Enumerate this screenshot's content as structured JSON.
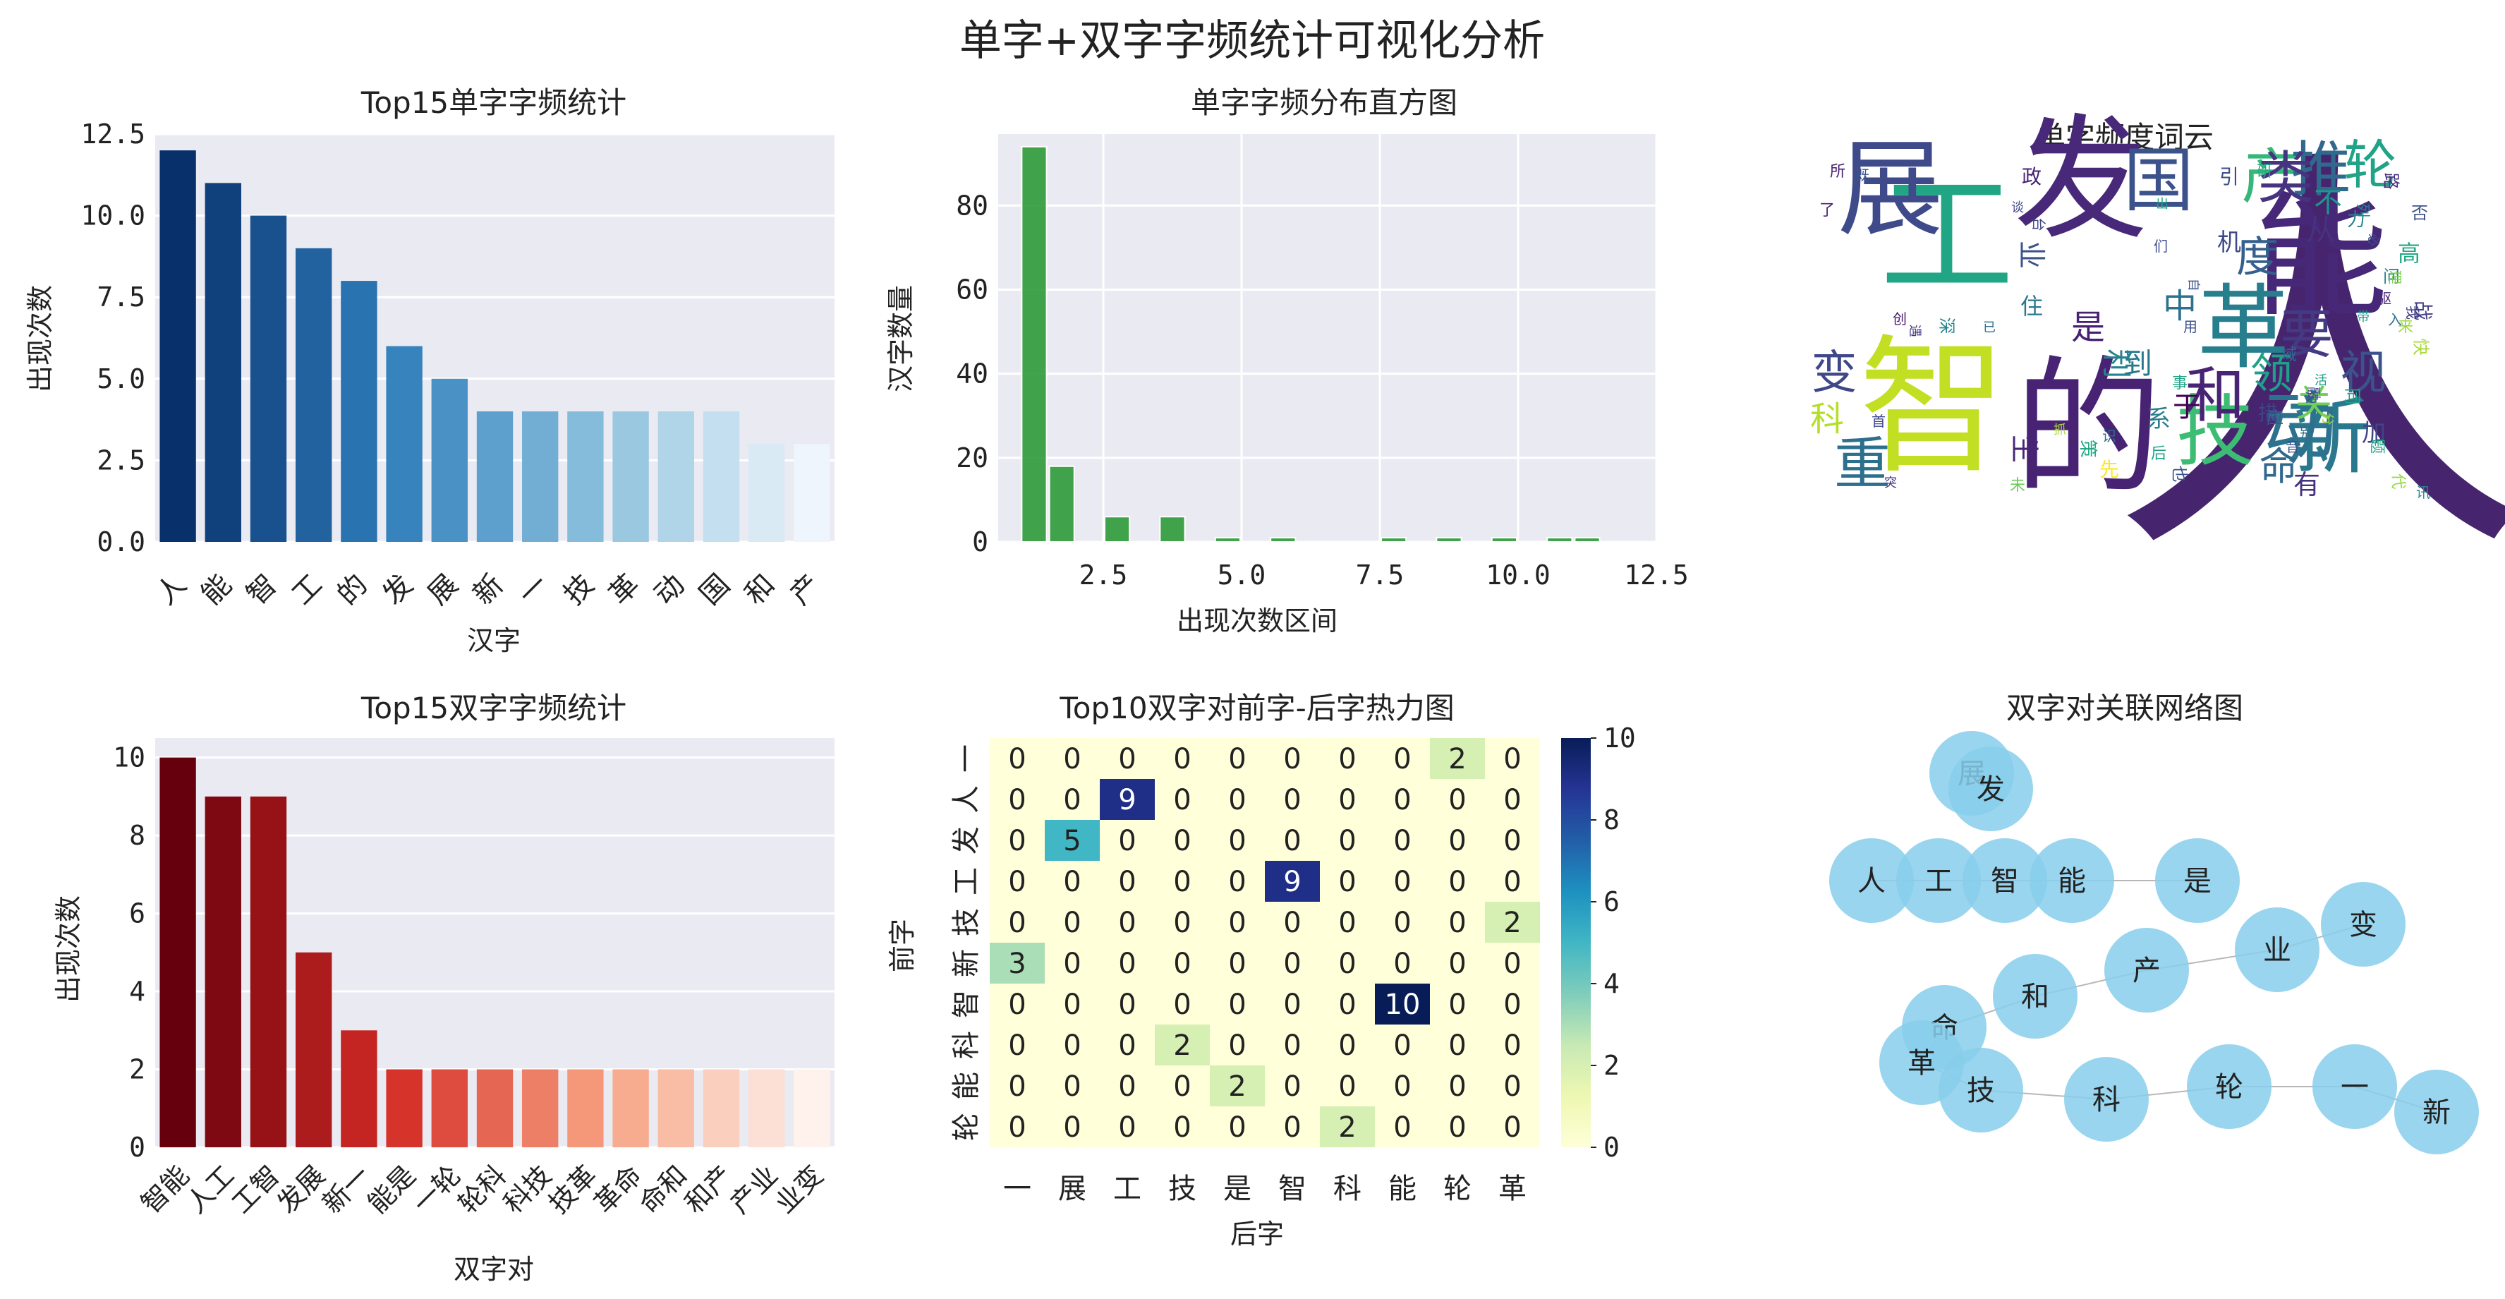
{
  "figure_title": "单字+双字字频统计可视化分析",
  "chart_data": [
    {
      "type": "bar",
      "title": "Top15单字字频统计",
      "xlabel": "汉字",
      "ylabel": "出现次数",
      "categories": [
        "人",
        "能",
        "智",
        "工",
        "的",
        "发",
        "展",
        "新",
        "一",
        "技",
        "革",
        "动",
        "国",
        "和",
        "产"
      ],
      "values": [
        12,
        11,
        10,
        9,
        8,
        6,
        5,
        4,
        4,
        4,
        4,
        4,
        4,
        3,
        3
      ],
      "ylim": [
        0,
        12.5
      ],
      "yticks": [
        "0.0",
        "2.5",
        "5.0",
        "7.5",
        "10.0",
        "12.5"
      ],
      "palette": "Blues_r",
      "grid": true
    },
    {
      "type": "bar",
      "title": "单字字频分布直方图",
      "xlabel": "出现次数区间",
      "ylabel": "汉字数量",
      "bins": [
        {
          "from": 1.0,
          "to": 1.5,
          "count": 94
        },
        {
          "from": 1.5,
          "to": 2.0,
          "count": 18
        },
        {
          "from": 2.5,
          "to": 3.0,
          "count": 6
        },
        {
          "from": 3.5,
          "to": 4.0,
          "count": 6
        },
        {
          "from": 4.5,
          "to": 5.0,
          "count": 1
        },
        {
          "from": 5.5,
          "to": 6.0,
          "count": 1
        },
        {
          "from": 7.5,
          "to": 8.0,
          "count": 1
        },
        {
          "from": 8.5,
          "to": 9.0,
          "count": 1
        },
        {
          "from": 9.5,
          "to": 10.0,
          "count": 1
        },
        {
          "from": 10.5,
          "to": 11.0,
          "count": 1
        },
        {
          "from": 11.0,
          "to": 11.5,
          "count": 1
        }
      ],
      "xlim": [
        0.6,
        12.5
      ],
      "ylim": [
        0,
        97
      ],
      "xticks": [
        "2.5",
        "5.0",
        "7.5",
        "10.0",
        "12.5"
      ],
      "yticks": [
        "0",
        "20",
        "40",
        "60",
        "80"
      ],
      "bar_color": "#2e9a37",
      "grid": true
    },
    {
      "type": "wordcloud",
      "title": "单字频度词云",
      "words": [
        {
          "text": "人",
          "color": "#46256e"
        },
        {
          "text": "能",
          "color": "#472878"
        },
        {
          "text": "智",
          "color": "#c2df23"
        },
        {
          "text": "工",
          "color": "#21a685"
        },
        {
          "text": "的",
          "color": "#482374"
        },
        {
          "text": "发",
          "color": "#482878"
        },
        {
          "text": "展",
          "color": "#3e4a89"
        },
        {
          "text": "新",
          "color": "#2a788e"
        },
        {
          "text": "技",
          "color": "#3dbc74"
        },
        {
          "text": "革",
          "color": "#277f8e"
        },
        {
          "text": "动",
          "color": "#2c718e"
        },
        {
          "text": "国",
          "color": "#3b528b"
        },
        {
          "text": "和",
          "color": "#482475"
        },
        {
          "text": "产",
          "color": "#35b779"
        },
        {
          "text": "推",
          "color": "#31688e"
        },
        {
          "text": "类",
          "color": "#463480"
        },
        {
          "text": "轮",
          "color": "#20a386"
        },
        {
          "text": "要",
          "color": "#443a83"
        },
        {
          "text": "变",
          "color": "#3f4788"
        },
        {
          "text": "重",
          "color": "#2d708e"
        },
        {
          "text": "视",
          "color": "#3b528b"
        },
        {
          "text": "度",
          "color": "#355f8d"
        },
        {
          "text": "领",
          "color": "#1fa088"
        },
        {
          "text": "命",
          "color": "#31688e"
        },
        {
          "text": "中",
          "color": "#2c728e"
        },
        {
          "text": "关",
          "color": "#6ece58"
        },
        {
          "text": "是",
          "color": "#482173"
        },
        {
          "text": "到",
          "color": "#2a788e"
        },
        {
          "text": "从",
          "color": "#46327e"
        },
        {
          "text": "科",
          "color": "#b5de2b"
        },
        {
          "text": "有",
          "color": "#46317e"
        },
        {
          "text": "利",
          "color": "#26828e"
        },
        {
          "text": "于",
          "color": "#440154"
        },
        {
          "text": "不",
          "color": "#1f958b"
        },
        {
          "text": "机",
          "color": "#3e4989"
        },
        {
          "text": "生",
          "color": "#482677"
        },
        {
          "text": "加",
          "color": "#404688"
        },
        {
          "text": "系",
          "color": "#287c8e"
        },
        {
          "text": "高",
          "color": "#22a884"
        },
        {
          "text": "业",
          "color": "#3b528b"
        },
        {
          "text": "住",
          "color": "#2a788e"
        },
        {
          "text": "战",
          "color": "#433d84"
        },
        {
          "text": "政",
          "color": "#482071"
        },
        {
          "text": "力",
          "color": "#25858e"
        },
        {
          "text": "引",
          "color": "#3e4c8a"
        },
        {
          "text": "措",
          "color": "#404588"
        },
        {
          "text": "应",
          "color": "#365d8d"
        },
        {
          "text": "快",
          "color": "#a8db34"
        },
        {
          "text": "同",
          "color": "#1fa187"
        },
        {
          "text": "也",
          "color": "#3b528b"
        },
        {
          "text": "先",
          "color": "#fde725"
        },
        {
          "text": "所",
          "color": "#482071"
        },
        {
          "text": "了",
          "color": "#482374"
        },
        {
          "text": "既",
          "color": "#3b528b"
        },
        {
          "text": "研",
          "color": "#25ab82"
        },
        {
          "text": "否",
          "color": "#3b528b"
        },
        {
          "text": "路",
          "color": "#472f7d"
        },
        {
          "text": "问",
          "color": "#26828e"
        },
        {
          "text": "代",
          "color": "#95d840"
        },
        {
          "text": "题",
          "color": "#20a486"
        },
        {
          "text": "音",
          "color": "#3b528b"
        },
        {
          "text": "事",
          "color": "#20a386"
        },
        {
          "text": "后",
          "color": "#1fa088"
        },
        {
          "text": "策",
          "color": "#22a785"
        },
        {
          "text": "创",
          "color": "#48186a"
        },
        {
          "text": "深",
          "color": "#25848e"
        },
        {
          "text": "用",
          "color": "#3b528b"
        },
        {
          "text": "域",
          "color": "#31688e"
        },
        {
          "text": "列",
          "color": "#26828e"
        },
        {
          "text": "们",
          "color": "#3e4c8a"
        },
        {
          "text": "识",
          "color": "#2d708e"
        },
        {
          "text": "融",
          "color": "#404688"
        },
        {
          "text": "别",
          "color": "#2e6f8e"
        },
        {
          "text": "台",
          "color": "#3f4788"
        },
        {
          "text": "讯",
          "color": "#23898e"
        },
        {
          "text": "未",
          "color": "#6ccd5a"
        },
        {
          "text": "抓",
          "color": "#a5db36"
        },
        {
          "text": "遇",
          "color": "#453781"
        },
        {
          "text": "已",
          "color": "#2e6e8e"
        },
        {
          "text": "首",
          "color": "#3f4889"
        },
        {
          "text": "驱",
          "color": "#482878"
        },
        {
          "text": "理",
          "color": "#7ad151"
        },
        {
          "text": "活",
          "color": "#1f9e89"
        },
        {
          "text": "分",
          "color": "#a0da39"
        },
        {
          "text": "来",
          "color": "#9bd93c"
        },
        {
          "text": "入",
          "color": "#2c728e"
        },
        {
          "text": "我",
          "color": "#424086"
        },
        {
          "text": "带",
          "color": "#1f968b"
        },
        {
          "text": "必",
          "color": "#3d4e8a"
        },
        {
          "text": "论",
          "color": "#38598c"
        },
        {
          "text": "出",
          "color": "#22a785"
        },
        {
          "text": "自",
          "color": "#3b528b"
        },
        {
          "text": "突",
          "color": "#46327e"
        },
        {
          "text": "谈",
          "color": "#3f4889"
        }
      ]
    },
    {
      "type": "bar",
      "title": "Top15双字字频统计",
      "xlabel": "双字对",
      "ylabel": "出现次数",
      "categories": [
        "智能",
        "人工",
        "工智",
        "发展",
        "新一",
        "能是",
        "一轮",
        "轮科",
        "科技",
        "技革",
        "革命",
        "命和",
        "和产",
        "产业",
        "业变"
      ],
      "values": [
        10,
        9,
        9,
        5,
        3,
        2,
        2,
        2,
        2,
        2,
        2,
        2,
        2,
        2,
        2
      ],
      "ylim": [
        0,
        10.5
      ],
      "yticks": [
        "0",
        "2",
        "4",
        "6",
        "8",
        "10"
      ],
      "palette": "Reds_r",
      "grid": true
    },
    {
      "type": "heatmap",
      "title": "Top10双字对前字-后字热力图",
      "xlabel": "后字",
      "ylabel": "前字",
      "x": [
        "一",
        "展",
        "工",
        "技",
        "是",
        "智",
        "科",
        "能",
        "轮",
        "革"
      ],
      "y": [
        "一",
        "人",
        "发",
        "工",
        "技",
        "新",
        "智",
        "科",
        "能",
        "轮"
      ],
      "values": [
        [
          0,
          0,
          0,
          0,
          0,
          0,
          0,
          0,
          2,
          0
        ],
        [
          0,
          0,
          9,
          0,
          0,
          0,
          0,
          0,
          0,
          0
        ],
        [
          0,
          5,
          0,
          0,
          0,
          0,
          0,
          0,
          0,
          0
        ],
        [
          0,
          0,
          0,
          0,
          0,
          9,
          0,
          0,
          0,
          0
        ],
        [
          0,
          0,
          0,
          0,
          0,
          0,
          0,
          0,
          0,
          2
        ],
        [
          3,
          0,
          0,
          0,
          0,
          0,
          0,
          0,
          0,
          0
        ],
        [
          0,
          0,
          0,
          0,
          0,
          0,
          0,
          10,
          0,
          0
        ],
        [
          0,
          0,
          0,
          2,
          0,
          0,
          0,
          0,
          0,
          0
        ],
        [
          0,
          0,
          0,
          0,
          2,
          0,
          0,
          0,
          0,
          0
        ],
        [
          0,
          0,
          0,
          0,
          0,
          0,
          2,
          0,
          0,
          0
        ]
      ],
      "colorbar_ticks": [
        "0",
        "2",
        "4",
        "6",
        "8",
        "10"
      ],
      "vmin": 0,
      "vmax": 10,
      "colormap": "YlGnBu"
    },
    {
      "type": "network",
      "title": "双字对关联网络图",
      "nodes": [
        "展",
        "发",
        "人",
        "工",
        "智",
        "能",
        "是",
        "变",
        "业",
        "产",
        "和",
        "命",
        "革",
        "技",
        "科",
        "轮",
        "一",
        "新"
      ],
      "edges": [
        [
          "发",
          "展"
        ],
        [
          "人",
          "工"
        ],
        [
          "工",
          "智"
        ],
        [
          "智",
          "能"
        ],
        [
          "能",
          "是"
        ],
        [
          "业",
          "变"
        ],
        [
          "产",
          "业"
        ],
        [
          "和",
          "产"
        ],
        [
          "命",
          "和"
        ],
        [
          "革",
          "命"
        ],
        [
          "技",
          "革"
        ],
        [
          "科",
          "技"
        ],
        [
          "轮",
          "科"
        ],
        [
          "一",
          "轮"
        ],
        [
          "新",
          "一"
        ]
      ],
      "node_color": "#87ceeb"
    }
  ]
}
